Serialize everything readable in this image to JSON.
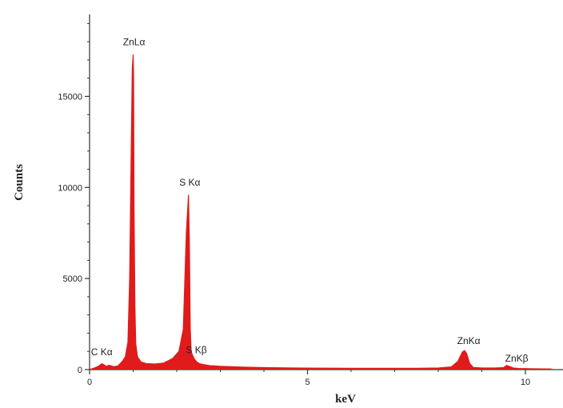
{
  "chart_data": {
    "type": "area",
    "title": "",
    "xlabel": "keV",
    "ylabel": "Counts",
    "xlim": [
      0,
      11
    ],
    "ylim": [
      0,
      19500
    ],
    "x_ticks": [
      0,
      5,
      10
    ],
    "y_ticks": [
      0,
      5000,
      10000,
      15000
    ],
    "grid": false,
    "series_color": "#e01b1b",
    "series": [
      {
        "values_x": [
          0.0,
          0.1,
          0.2,
          0.28,
          0.33,
          0.38,
          0.45,
          0.55,
          0.65,
          0.75,
          0.82,
          0.88,
          0.92,
          0.95,
          0.98,
          1.0,
          1.01,
          1.02,
          1.04,
          1.06,
          1.1,
          1.18,
          1.3,
          1.5,
          1.7,
          1.9,
          2.05,
          2.15,
          2.22,
          2.27,
          2.29,
          2.31,
          2.33,
          2.36,
          2.4,
          2.46,
          2.52,
          2.6,
          2.75,
          3.0,
          3.5,
          4.0,
          4.5,
          5.0,
          5.5,
          6.0,
          6.5,
          7.0,
          7.5,
          8.0,
          8.3,
          8.45,
          8.55,
          8.6,
          8.65,
          8.72,
          8.8,
          9.0,
          9.3,
          9.5,
          9.57,
          9.64,
          9.72,
          9.85,
          10.2,
          10.6,
          11.0
        ],
        "values_y": [
          0,
          80,
          180,
          320,
          260,
          180,
          240,
          160,
          200,
          450,
          700,
          1500,
          5000,
          11000,
          16500,
          17300,
          16000,
          9000,
          3500,
          1400,
          700,
          420,
          330,
          310,
          360,
          600,
          1000,
          2200,
          7500,
          9600,
          7000,
          2300,
          1000,
          800,
          600,
          420,
          330,
          280,
          220,
          180,
          140,
          110,
          95,
          85,
          80,
          75,
          70,
          70,
          75,
          90,
          150,
          450,
          950,
          1050,
          900,
          350,
          120,
          90,
          90,
          110,
          230,
          170,
          90,
          60,
          45,
          35,
          30
        ]
      }
    ],
    "peak_labels": [
      {
        "text": "ZnLα",
        "x": 1.02,
        "y": 17800
      },
      {
        "text": "S Kα",
        "x": 2.3,
        "y": 10100
      },
      {
        "text": "C Kα",
        "x": 0.28,
        "y": 800
      },
      {
        "text": "S Kβ",
        "x": 2.45,
        "y": 900
      },
      {
        "text": "ZnKα",
        "x": 8.7,
        "y": 1400
      },
      {
        "text": "ZnKβ",
        "x": 9.8,
        "y": 450
      }
    ]
  }
}
